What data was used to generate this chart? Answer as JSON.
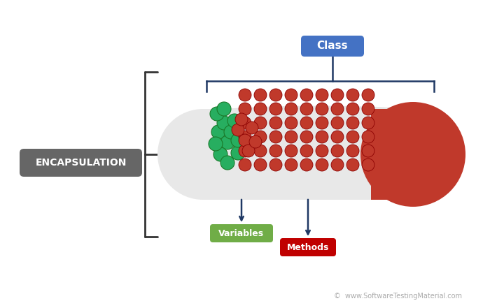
{
  "background_color": "#ffffff",
  "encapsulation_label": "ENCAPSULATION",
  "encapsulation_box_color": "#666666",
  "encapsulation_text_color": "#ffffff",
  "class_label": "Class",
  "class_box_color": "#4472c4",
  "class_text_color": "#ffffff",
  "variables_label": "Variables",
  "variables_box_color": "#70ad47",
  "variables_text_color": "#ffffff",
  "methods_label": "Methods",
  "methods_box_color": "#c00000",
  "methods_text_color": "#ffffff",
  "capsule_body_color": "#e8e8e8",
  "capsule_head_color": "#c0392b",
  "dots_red_color": "#c0392b",
  "dots_green_color": "#27ae60",
  "bracket_color": "#333333",
  "arrow_color": "#1f3864",
  "watermark_text": "©  www.SoftwareTestingMaterial.com",
  "watermark_color": "#aaaaaa"
}
